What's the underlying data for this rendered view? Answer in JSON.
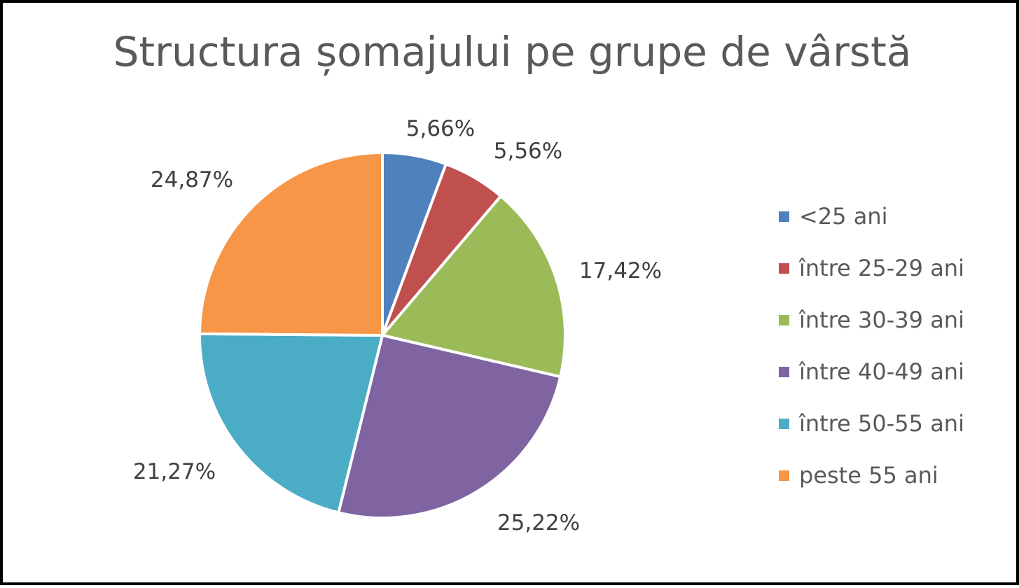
{
  "chart_data": {
    "type": "pie",
    "title": "Structura șomajului pe grupe de vârstă",
    "categories": [
      "<25 ani",
      "între 25-29 ani",
      "între 30-39 ani",
      "între 40-49 ani",
      "între 50-55 ani",
      "peste 55 ani"
    ],
    "values": [
      5.66,
      5.56,
      17.42,
      25.22,
      21.27,
      24.87
    ],
    "data_labels": [
      "5,66%",
      "5,56%",
      "17,42%",
      "25,22%",
      "21,27%",
      "24,87%"
    ],
    "colors": [
      "#4F81BD",
      "#C0504D",
      "#9BBB59",
      "#8064A2",
      "#4BACC6",
      "#F79646"
    ],
    "legend_position": "right",
    "start_angle": "top, clockwise"
  }
}
